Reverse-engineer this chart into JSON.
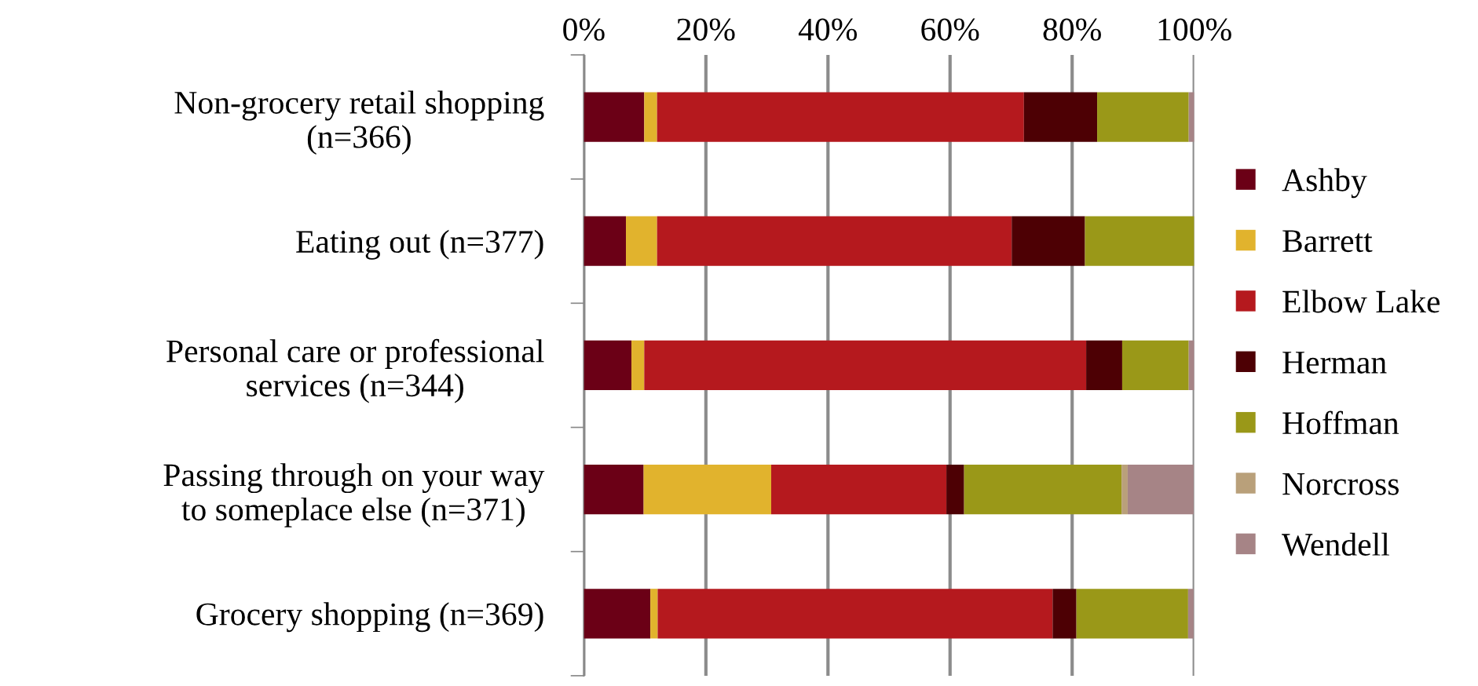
{
  "chart_data": {
    "type": "bar",
    "orientation": "horizontal",
    "stacked": true,
    "categories": [
      "Non-grocery retail shopping\n(n=366)",
      "Eating out (n=377)",
      "Personal care or professional\nservices (n=344)",
      "Passing through on your way\nto someplace else (n=371)",
      "Grocery shopping (n=369)"
    ],
    "series": [
      {
        "name": "Ashby",
        "color": "#6b0016",
        "values": [
          9.9,
          6.9,
          7.8,
          9.8,
          10.9
        ]
      },
      {
        "name": "Barrett",
        "color": "#e1b32d",
        "values": [
          2.1,
          5.1,
          2.1,
          20.9,
          1.2
        ]
      },
      {
        "name": "Elbow Lake",
        "color": "#b5191e",
        "values": [
          60.1,
          58.1,
          72.4,
          28.7,
          64.7
        ]
      },
      {
        "name": "Herman",
        "color": "#4d0004",
        "values": [
          12.0,
          12.0,
          5.9,
          2.9,
          3.9
        ]
      },
      {
        "name": "Hoffman",
        "color": "#9a9818",
        "values": [
          15.0,
          17.9,
          10.9,
          25.8,
          18.3
        ]
      },
      {
        "name": "Norcross",
        "color": "#b9a07a",
        "values": [
          null,
          null,
          null,
          1.0,
          null
        ]
      },
      {
        "name": "Wendell",
        "color": "#a68486",
        "values": [
          0.9,
          null,
          0.9,
          10.8,
          0.9
        ]
      }
    ],
    "xlim": [
      0,
      100
    ],
    "xticks": [
      {
        "value": 0,
        "label": "0%"
      },
      {
        "value": 20,
        "label": "20%"
      },
      {
        "value": 40,
        "label": "40%"
      },
      {
        "value": 60,
        "label": "60%"
      },
      {
        "value": 80,
        "label": "80%"
      },
      {
        "value": 100,
        "label": "100%"
      }
    ],
    "grid": "x",
    "legend": "right"
  }
}
